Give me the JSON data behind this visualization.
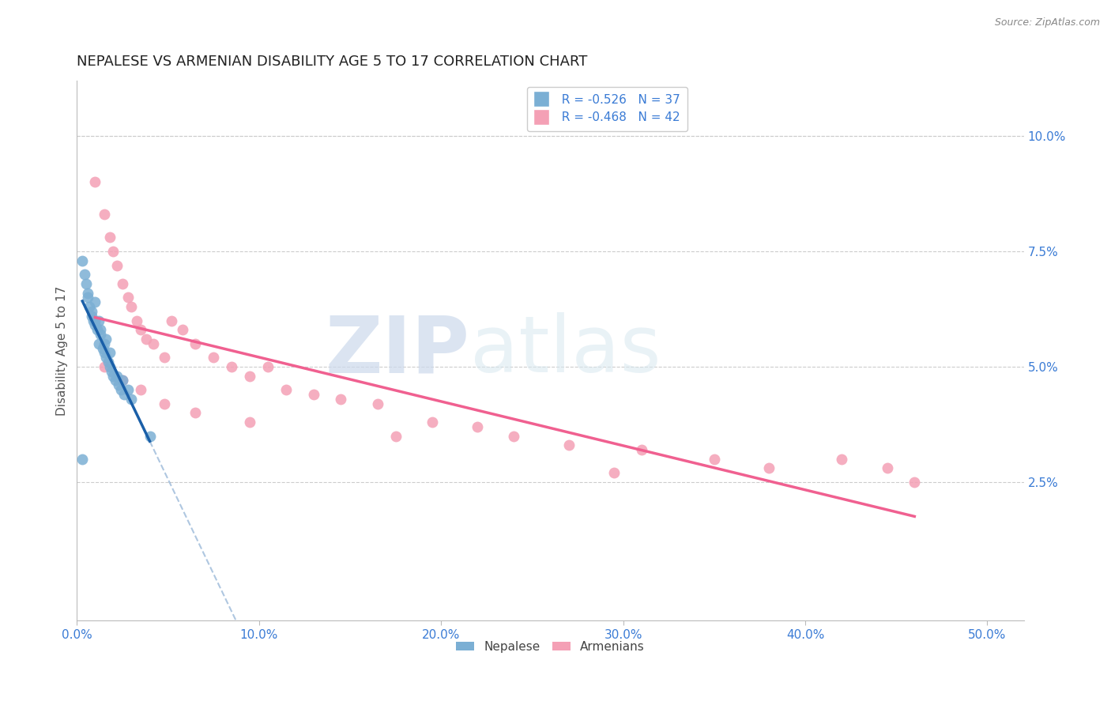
{
  "title": "NEPALESE VS ARMENIAN DISABILITY AGE 5 TO 17 CORRELATION CHART",
  "source": "Source: ZipAtlas.com",
  "xlabel_ticks": [
    "0.0%",
    "10.0%",
    "20.0%",
    "30.0%",
    "40.0%",
    "50.0%"
  ],
  "xlabel_vals": [
    0.0,
    0.1,
    0.2,
    0.3,
    0.4,
    0.5
  ],
  "ylabel_ticks": [
    "2.5%",
    "5.0%",
    "7.5%",
    "10.0%"
  ],
  "ylabel_vals": [
    0.025,
    0.05,
    0.075,
    0.1
  ],
  "xlim": [
    0.0,
    0.52
  ],
  "ylim": [
    -0.005,
    0.112
  ],
  "nepalese_x": [
    0.003,
    0.005,
    0.006,
    0.007,
    0.008,
    0.009,
    0.01,
    0.01,
    0.011,
    0.012,
    0.012,
    0.013,
    0.014,
    0.015,
    0.015,
    0.016,
    0.017,
    0.018,
    0.018,
    0.019,
    0.02,
    0.021,
    0.022,
    0.023,
    0.024,
    0.025,
    0.026,
    0.028,
    0.03,
    0.004,
    0.006,
    0.008,
    0.01,
    0.013,
    0.016,
    0.04,
    0.003
  ],
  "nepalese_y": [
    0.073,
    0.068,
    0.066,
    0.063,
    0.061,
    0.06,
    0.059,
    0.064,
    0.058,
    0.06,
    0.055,
    0.057,
    0.054,
    0.053,
    0.055,
    0.052,
    0.051,
    0.05,
    0.053,
    0.049,
    0.048,
    0.047,
    0.048,
    0.046,
    0.045,
    0.047,
    0.044,
    0.045,
    0.043,
    0.07,
    0.065,
    0.062,
    0.06,
    0.058,
    0.056,
    0.035,
    0.03
  ],
  "armenian_x": [
    0.01,
    0.015,
    0.018,
    0.02,
    0.022,
    0.025,
    0.028,
    0.03,
    0.033,
    0.035,
    0.038,
    0.042,
    0.048,
    0.052,
    0.058,
    0.065,
    0.075,
    0.085,
    0.095,
    0.105,
    0.115,
    0.13,
    0.145,
    0.165,
    0.195,
    0.22,
    0.24,
    0.27,
    0.31,
    0.35,
    0.38,
    0.42,
    0.445,
    0.46,
    0.015,
    0.025,
    0.035,
    0.048,
    0.065,
    0.095,
    0.175,
    0.295
  ],
  "armenian_y": [
    0.09,
    0.083,
    0.078,
    0.075,
    0.072,
    0.068,
    0.065,
    0.063,
    0.06,
    0.058,
    0.056,
    0.055,
    0.052,
    0.06,
    0.058,
    0.055,
    0.052,
    0.05,
    0.048,
    0.05,
    0.045,
    0.044,
    0.043,
    0.042,
    0.038,
    0.037,
    0.035,
    0.033,
    0.032,
    0.03,
    0.028,
    0.03,
    0.028,
    0.025,
    0.05,
    0.047,
    0.045,
    0.042,
    0.04,
    0.038,
    0.035,
    0.027
  ],
  "nepalese_color": "#7bafd4",
  "armenian_color": "#f4a0b5",
  "nepalese_line_color": "#1a5fa8",
  "armenian_line_color": "#f06090",
  "nep_line_x_start": 0.003,
  "nep_line_x_end": 0.04,
  "nep_line_x_dash_end": 0.38,
  "arm_line_x_start": 0.01,
  "arm_line_x_end": 0.46,
  "legend_r_nepalese": "R = -0.526",
  "legend_n_nepalese": "N = 37",
  "legend_r_armenian": "R = -0.468",
  "legend_n_armenian": "N = 42",
  "watermark_zip": "ZIP",
  "watermark_atlas": "atlas",
  "ylabel": "Disability Age 5 to 17",
  "title_fontsize": 13,
  "axis_label_fontsize": 11,
  "tick_fontsize": 11,
  "legend_fontsize": 11
}
